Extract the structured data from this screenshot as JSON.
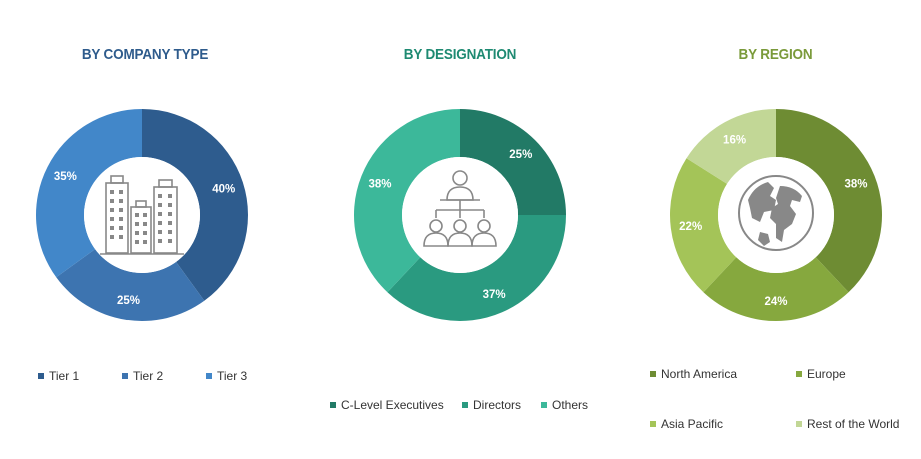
{
  "colors": {
    "company_title": "#2e5b8c",
    "designation_title": "#1e8a72",
    "region_title": "#7a9a3a"
  },
  "chart_data": [
    {
      "type": "pie",
      "title": "BY COMPANY TYPE",
      "categories": [
        "Tier 1",
        "Tier 2",
        "Tier 3"
      ],
      "values": [
        40,
        25,
        35
      ],
      "labels": [
        "40%",
        "25%",
        "35%"
      ],
      "colors": [
        "#2e5c8e",
        "#3d74b0",
        "#4287c9"
      ],
      "center_icon": "buildings-icon"
    },
    {
      "type": "pie",
      "title": "BY DESIGNATION",
      "categories": [
        "C-Level Executives",
        "Directors",
        "Others"
      ],
      "values": [
        25,
        37,
        38
      ],
      "labels": [
        "25%",
        "37%",
        "38%"
      ],
      "colors": [
        "#227a66",
        "#2a9a80",
        "#3cb89a"
      ],
      "center_icon": "org-chart-icon"
    },
    {
      "type": "pie",
      "title": "BY REGION",
      "categories": [
        "North America",
        "Europe",
        "Asia Pacific",
        "Rest of the World"
      ],
      "values": [
        38,
        24,
        22,
        16
      ],
      "labels": [
        "38%",
        "24%",
        "22%",
        "16%"
      ],
      "colors": [
        "#6e8c33",
        "#86a83e",
        "#a4c458",
        "#c2d796"
      ],
      "center_icon": "globe-icon"
    }
  ]
}
